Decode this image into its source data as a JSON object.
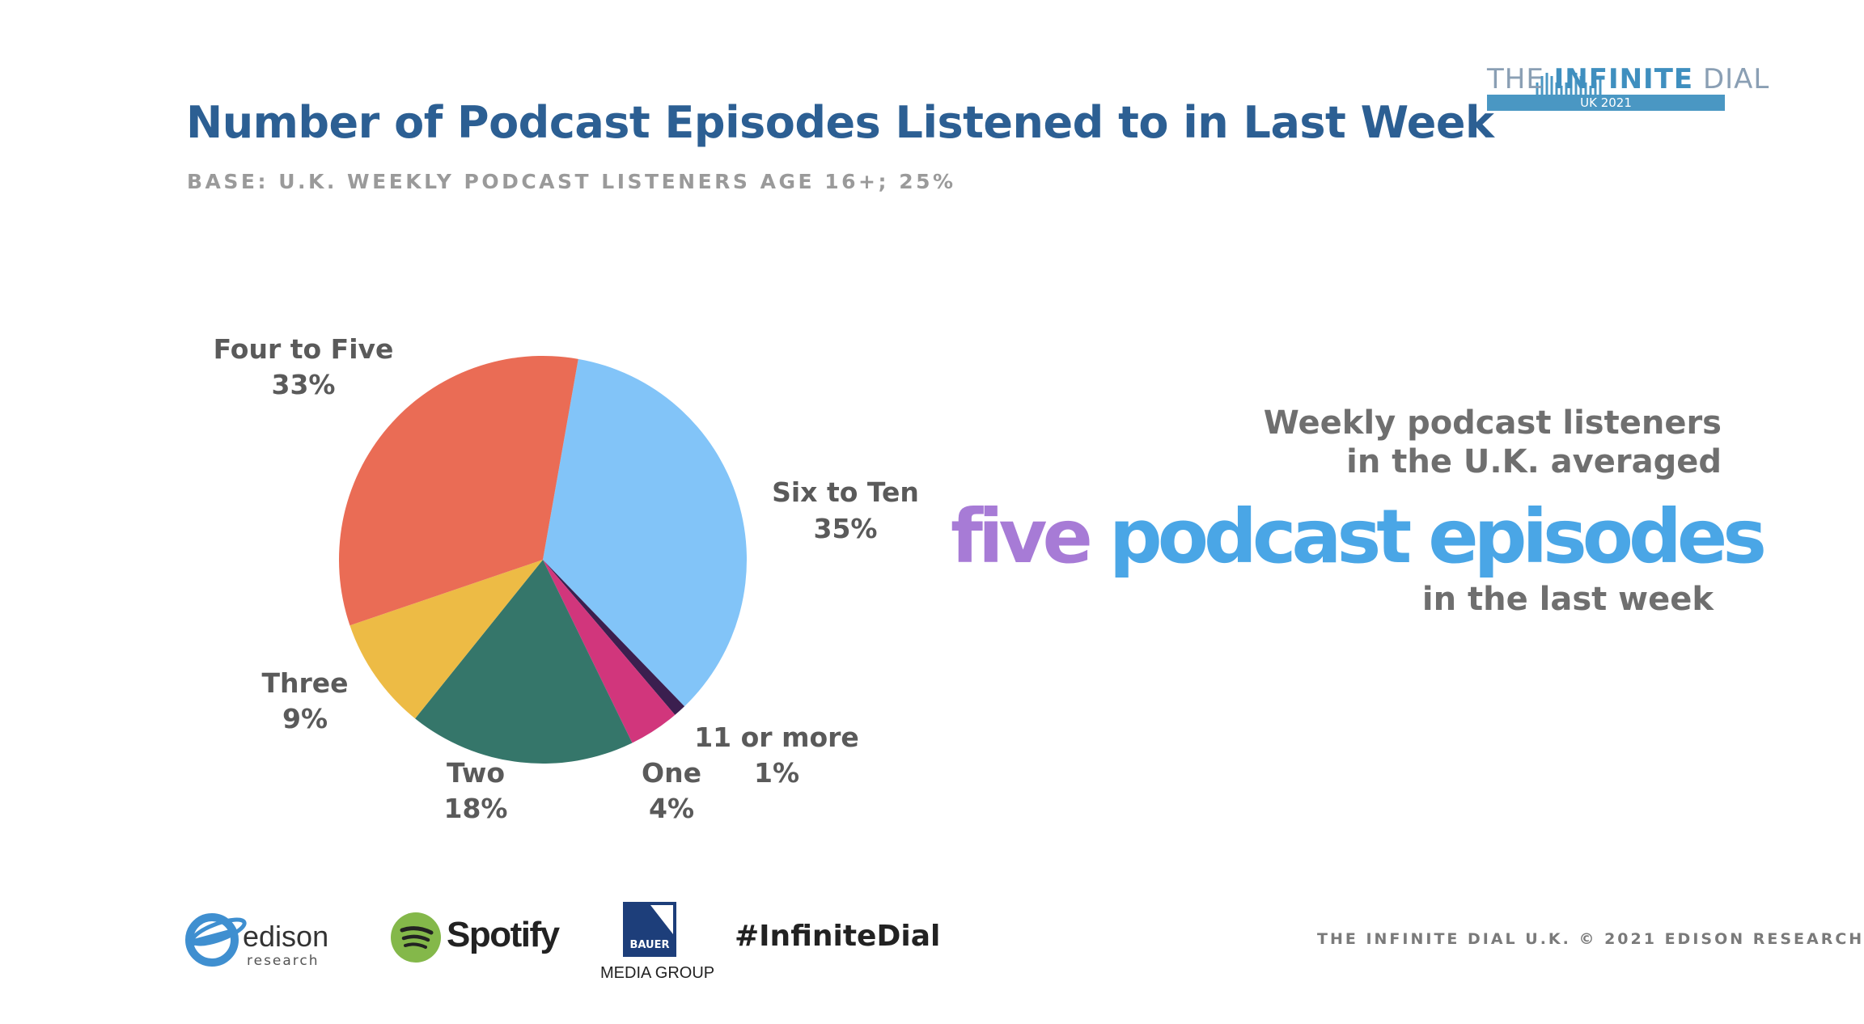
{
  "header": {
    "title": "Number of Podcast Episodes Listened to in Last Week",
    "base": "BASE: U.K. WEEKLY PODCAST LISTENERS AGE 16+; 25%"
  },
  "logo": {
    "name_prefix": "THE ",
    "name_bold": "INFINITE",
    "name_suffix": " DIAL",
    "edition": "UK 2021"
  },
  "chart_data": {
    "type": "pie",
    "title": "Number of Podcast Episodes Listened to in Last Week",
    "categories": [
      "Six to Ten",
      "11 or more",
      "One",
      "Two",
      "Three",
      "Four to Five"
    ],
    "values": [
      35,
      1,
      4,
      18,
      9,
      33
    ],
    "labels": [
      "35%",
      "1%",
      "4%",
      "18%",
      "9%",
      "33%"
    ],
    "colors": [
      "#82c4f8",
      "#3b1f4f",
      "#d1367c",
      "#35766a",
      "#edbb45",
      "#ea6c55"
    ]
  },
  "callout": {
    "line1": "Weekly podcast listeners",
    "line2": "in the U.K. averaged",
    "highlight_word": "five",
    "highlight_rest": " podcast episodes",
    "line4": "in the last week"
  },
  "footer": {
    "edison_name": "edison",
    "edison_sub": "research",
    "spotify": "Spotify",
    "bauer_mark": "BAUER",
    "bauer_name": "MEDIA GROUP",
    "hashtag": "#InfiniteDial",
    "copyright": "THE INFINITE DIAL U.K.  © 2021 EDISON RESEARCH"
  }
}
